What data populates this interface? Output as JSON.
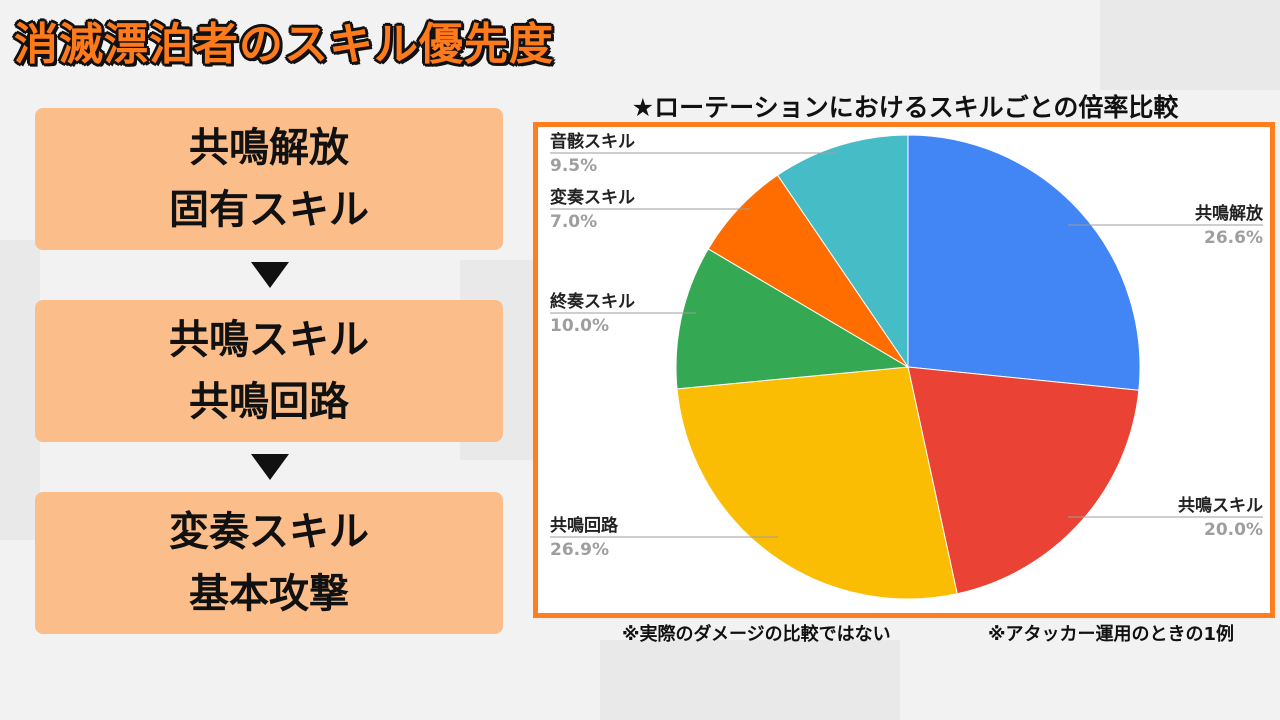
{
  "page_title": "消滅漂泊者のスキル優先度",
  "priority_steps": [
    {
      "line1": "共鳴解放",
      "line2": "固有スキル"
    },
    {
      "line1": "共鳴スキル",
      "line2": "共鳴回路"
    },
    {
      "line1": "変奏スキル",
      "line2": "基本攻撃"
    }
  ],
  "notes": {
    "left": "※実際のダメージの比較ではない",
    "right": "※アタッカー運用のときの1例"
  },
  "chart_data": {
    "type": "pie",
    "title": "★ローテーションにおけるスキルごとの倍率比較",
    "slices": [
      {
        "label": "共鳴解放",
        "value": 26.6,
        "display": "26.6%",
        "color": "#4285f4"
      },
      {
        "label": "共鳴スキル",
        "value": 20.0,
        "display": "20.0%",
        "color": "#ea4335"
      },
      {
        "label": "共鳴回路",
        "value": 26.9,
        "display": "26.9%",
        "color": "#fbbc04"
      },
      {
        "label": "終奏スキル",
        "value": 10.0,
        "display": "10.0%",
        "color": "#34a853"
      },
      {
        "label": "変奏スキル",
        "value": 7.0,
        "display": "7.0%",
        "color": "#ff6d01"
      },
      {
        "label": "音骸スキル",
        "value": 9.5,
        "display": "9.5%",
        "color": "#46bdc6"
      }
    ],
    "legend": "none"
  }
}
